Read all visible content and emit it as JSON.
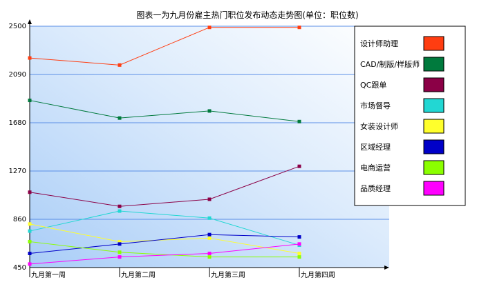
{
  "chart_data": {
    "type": "line",
    "title": "图表一为九月份雇主热门职位发布动态走势图(单位：职位数)",
    "categories": [
      "九月第一周",
      "九月第二周",
      "九月第三周",
      "九月第四周"
    ],
    "ylim": [
      450,
      2500
    ],
    "yticks": [
      450,
      860,
      1270,
      1680,
      2090,
      2500
    ],
    "grid": true,
    "legend_position": "right",
    "series": [
      {
        "name": "设计师助理",
        "color": "#ff3d11",
        "values": [
          2230,
          2170,
          2490,
          2490
        ]
      },
      {
        "name": "CAD/制版/样版师",
        "color": "#007a3d",
        "values": [
          1870,
          1720,
          1780,
          1690
        ]
      },
      {
        "name": "QC跟单",
        "color": "#8b0046",
        "values": [
          1090,
          970,
          1030,
          1310
        ]
      },
      {
        "name": "市场督导",
        "color": "#22d7d3",
        "values": [
          760,
          930,
          870,
          640
        ]
      },
      {
        "name": "女装设计师",
        "color": "#ffff2c",
        "values": [
          820,
          670,
          700,
          570
        ]
      },
      {
        "name": "区域经理",
        "color": "#0000c8",
        "values": [
          570,
          650,
          730,
          710
        ]
      },
      {
        "name": "电商运营",
        "color": "#8bff00",
        "values": [
          670,
          580,
          540,
          540
        ]
      },
      {
        "name": "品质经理",
        "color": "#ff00ff",
        "values": [
          480,
          540,
          570,
          650
        ]
      }
    ]
  }
}
